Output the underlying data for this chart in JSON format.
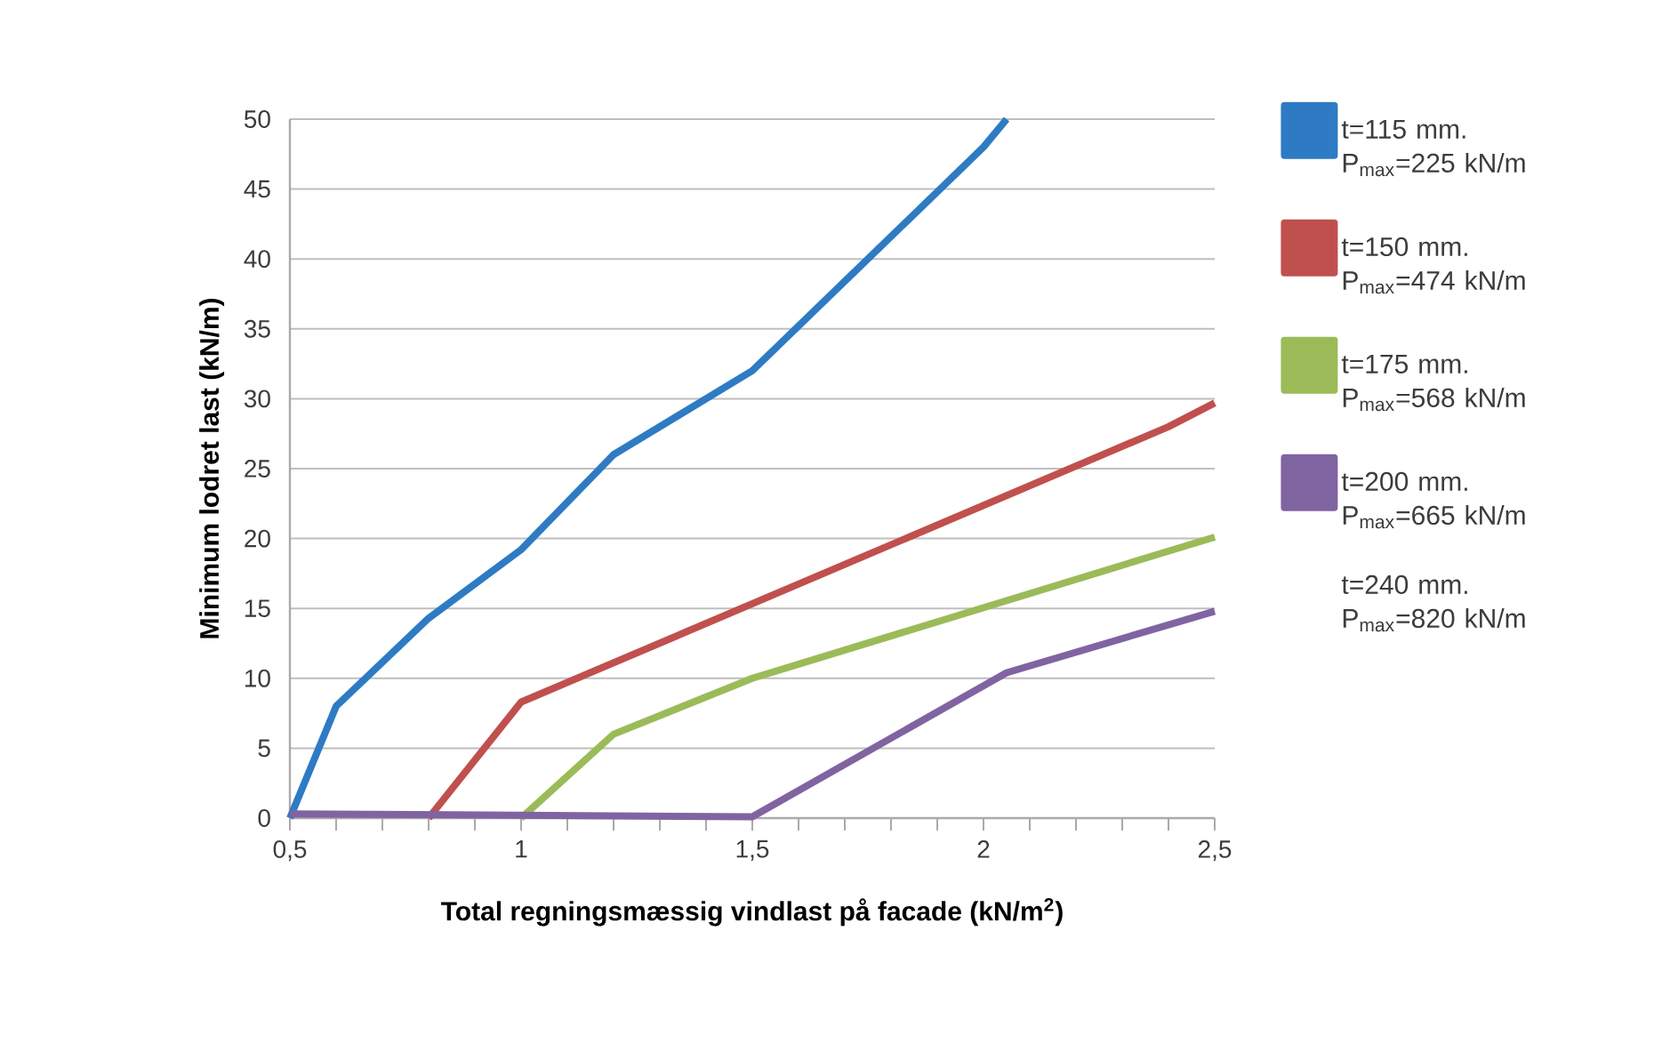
{
  "chart_data": {
    "type": "line",
    "xlabel": "Total regningsmæssig vindlast på facade (kN/m$^{2}$)",
    "ylabel": "Minimum lodret last (kN/m)",
    "xlim": [
      0.5,
      2.5
    ],
    "xticks": [
      {
        "value": 0.5,
        "label": "0,5"
      },
      1,
      {
        "value": 1.5,
        "label": "1,5"
      },
      2,
      {
        "value": 2.5,
        "label": "2,5"
      }
    ],
    "ylim": [
      0,
      50
    ],
    "yticks": [
      0,
      5,
      10,
      15,
      20,
      25,
      30,
      35,
      40,
      45,
      50
    ],
    "grid": "y",
    "legend": "right",
    "marker": "none",
    "line_style": "solid",
    "series": [
      {
        "name": "t=115 mm. P$_{max}$=225 kN/m",
        "color": "#2e7bc4",
        "x": [
          0.5,
          0.6,
          0.8,
          1.0,
          1.2,
          1.5,
          2.0,
          2.05
        ],
        "values": [
          0,
          8,
          14.3,
          19.2,
          26,
          32,
          48,
          50
        ]
      },
      {
        "name": "t=150 mm. P$_{max}$=474 kN/m",
        "color": "#c0504d",
        "x": [
          0.8,
          1.0,
          2.4,
          2.5
        ],
        "values": [
          0,
          8.3,
          28,
          29.7
        ]
      },
      {
        "name": "t=175 mm. P$_{max}$=568 kN/m",
        "color": "#9bbb59",
        "x": [
          1.0,
          1.2,
          1.5,
          2.4,
          2.5
        ],
        "values": [
          0,
          6,
          10,
          19.1,
          20.1
        ]
      },
      {
        "name": "t=200 mm. P$_{max}$=665 kN/m",
        "color": "#8064a2",
        "x": [
          0.5,
          1.5,
          2.05,
          2.5
        ],
        "values": [
          0.3,
          0.1,
          10.4,
          14.8
        ]
      },
      {
        "name": "t=240 mm. P$_{max}$=820 kN/m"
      }
    ]
  }
}
